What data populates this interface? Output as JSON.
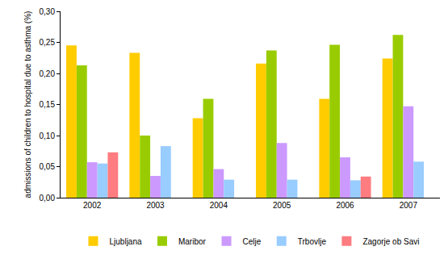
{
  "chart_data": {
    "type": "bar",
    "y_label": "admissions of children to hospital due to asthma (%)",
    "categories": [
      "2002",
      "2003",
      "2004",
      "2005",
      "2006",
      "2007"
    ],
    "series": [
      {
        "name": "Ljubljana",
        "color": "#FFCC00",
        "values": [
          0.245,
          0.233,
          0.128,
          0.216,
          0.159,
          0.224
        ]
      },
      {
        "name": "Maribor",
        "color": "#99CC00",
        "values": [
          0.213,
          0.1,
          0.159,
          0.237,
          0.246,
          0.262
        ]
      },
      {
        "name": "Celje",
        "color": "#CC99FF",
        "values": [
          0.057,
          0.035,
          0.046,
          0.088,
          0.065,
          0.147
        ]
      },
      {
        "name": "Trbovlje",
        "color": "#99CCFF",
        "values": [
          0.055,
          0.083,
          0.029,
          0.029,
          0.028,
          0.058
        ]
      },
      {
        "name": "Zagorje ob Savi",
        "color": "#FF7C80",
        "values": [
          0.073,
          null,
          null,
          null,
          0.034,
          null
        ]
      }
    ],
    "ylim": [
      0,
      0.3
    ],
    "yticks": [
      {
        "value": 0,
        "label": "0,00"
      },
      {
        "value": 0.05,
        "label": "0,05"
      },
      {
        "value": 0.1,
        "label": "0,10"
      },
      {
        "value": 0.15,
        "label": "0,15"
      },
      {
        "value": 0.2,
        "label": "0,20"
      },
      {
        "value": 0.25,
        "label": "0,25"
      },
      {
        "value": 0.3,
        "label": "0,30"
      }
    ],
    "grid": false,
    "legend": "bottom"
  }
}
